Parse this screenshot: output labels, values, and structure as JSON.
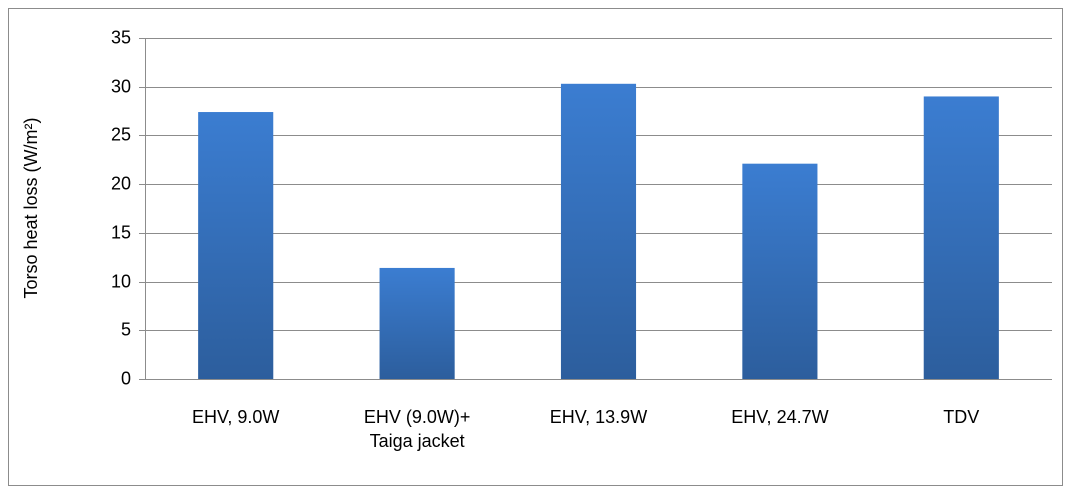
{
  "chart_data": {
    "type": "bar",
    "y_label": "Torso heat loss (W/m²)",
    "categories": [
      "EHV, 9.0W",
      "EHV (9.0W)+\nTaiga jacket",
      "EHV, 13.9W",
      "EHV, 24.7W",
      "TDV"
    ],
    "values": [
      27.4,
      11.4,
      30.3,
      22.1,
      29.0
    ],
    "color": "#3b7dd1",
    "ylim": [
      0,
      35
    ],
    "yticks": [
      0,
      5,
      10,
      15,
      20,
      25,
      30,
      35
    ],
    "grid": true
  }
}
